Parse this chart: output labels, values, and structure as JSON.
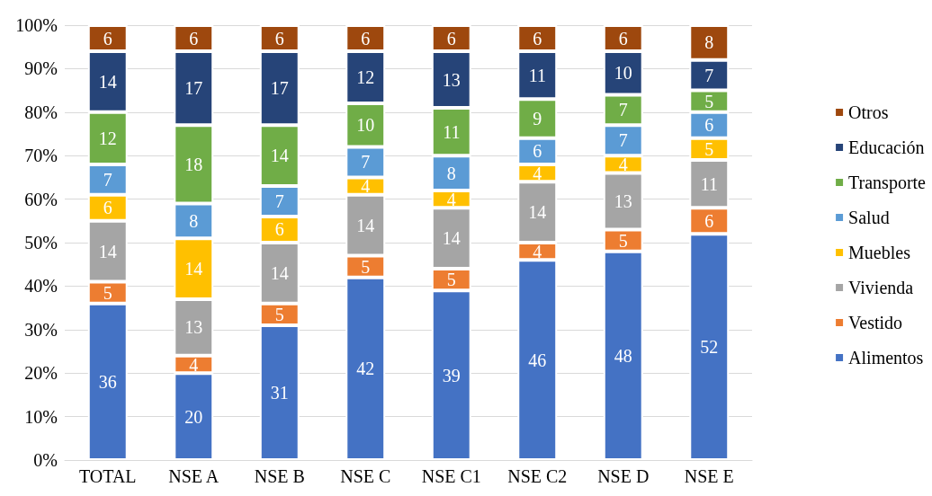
{
  "chart_data": {
    "type": "bar",
    "stacked": true,
    "data_labels": true,
    "grid": "y",
    "legend": "right",
    "categories": [
      "TOTAL",
      "NSE A",
      "NSE B",
      "NSE C",
      "NSE C1",
      "NSE C2",
      "NSE D",
      "NSE E"
    ],
    "ylim": [
      0,
      100
    ],
    "yticks": [
      {
        "value": 0,
        "label": "0%"
      },
      {
        "value": 10,
        "label": "10%"
      },
      {
        "value": 20,
        "label": "20%"
      },
      {
        "value": 30,
        "label": "30%"
      },
      {
        "value": 40,
        "label": "40%"
      },
      {
        "value": 50,
        "label": "50%"
      },
      {
        "value": 60,
        "label": "60%"
      },
      {
        "value": 70,
        "label": "70%"
      },
      {
        "value": 80,
        "label": "80%"
      },
      {
        "value": 90,
        "label": "90%"
      },
      {
        "value": 100,
        "label": "100%"
      }
    ],
    "series": [
      {
        "name": "Alimentos",
        "color": "#4472c4",
        "values": [
          36,
          20,
          31,
          42,
          39,
          46,
          48,
          52
        ]
      },
      {
        "name": "Vestido",
        "color": "#ed7d31",
        "values": [
          5,
          4,
          5,
          5,
          5,
          4,
          5,
          6
        ]
      },
      {
        "name": "Vivienda",
        "color": "#a5a5a5",
        "values": [
          14,
          13,
          14,
          14,
          14,
          14,
          13,
          11
        ]
      },
      {
        "name": "Muebles",
        "color": "#ffc000",
        "values": [
          6,
          14,
          6,
          4,
          4,
          4,
          4,
          5
        ]
      },
      {
        "name": "Salud",
        "color": "#5b9bd5",
        "values": [
          7,
          8,
          7,
          7,
          8,
          6,
          7,
          6
        ]
      },
      {
        "name": "Transporte",
        "color": "#70ad47",
        "values": [
          12,
          18,
          14,
          10,
          11,
          9,
          7,
          5
        ]
      },
      {
        "name": "Educación",
        "color": "#264478",
        "values": [
          14,
          17,
          17,
          12,
          13,
          11,
          10,
          7
        ]
      },
      {
        "name": "Otros",
        "color": "#9e480e",
        "values": [
          6,
          6,
          6,
          6,
          6,
          6,
          6,
          8
        ]
      }
    ]
  }
}
